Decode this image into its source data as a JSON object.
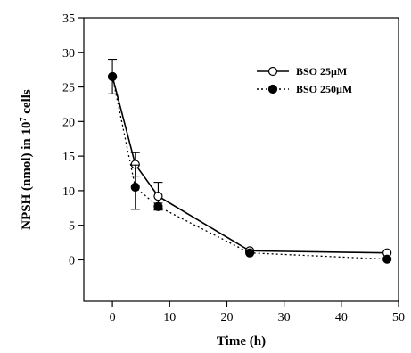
{
  "chart_data": {
    "type": "line",
    "title": "",
    "xlabel": "Time (h)",
    "ylabel_parts": [
      "NPSH (nmol) in 10",
      "7",
      " cells"
    ],
    "xlim": [
      -5,
      50
    ],
    "ylim": [
      -6,
      35
    ],
    "xticks": [
      0,
      10,
      20,
      30,
      40,
      50
    ],
    "yticks": [
      0,
      5,
      10,
      15,
      20,
      25,
      30,
      35
    ],
    "grid": false,
    "legend_position": "top-right",
    "series": [
      {
        "name": "BSO 25µM",
        "marker": "open-circle",
        "line": "solid",
        "x": [
          0,
          4,
          8,
          24,
          48
        ],
        "y": [
          26.5,
          13.8,
          9.2,
          1.3,
          1.0
        ],
        "err": [
          2.5,
          1.7,
          2.0,
          0,
          0
        ]
      },
      {
        "name": "BSO 250µM",
        "marker": "filled-circle",
        "line": "dotted",
        "x": [
          0,
          4,
          8,
          24,
          48
        ],
        "y": [
          26.5,
          10.5,
          7.7,
          1.0,
          0.1
        ],
        "err": [
          0,
          3.2,
          0.5,
          0,
          0
        ]
      }
    ]
  }
}
